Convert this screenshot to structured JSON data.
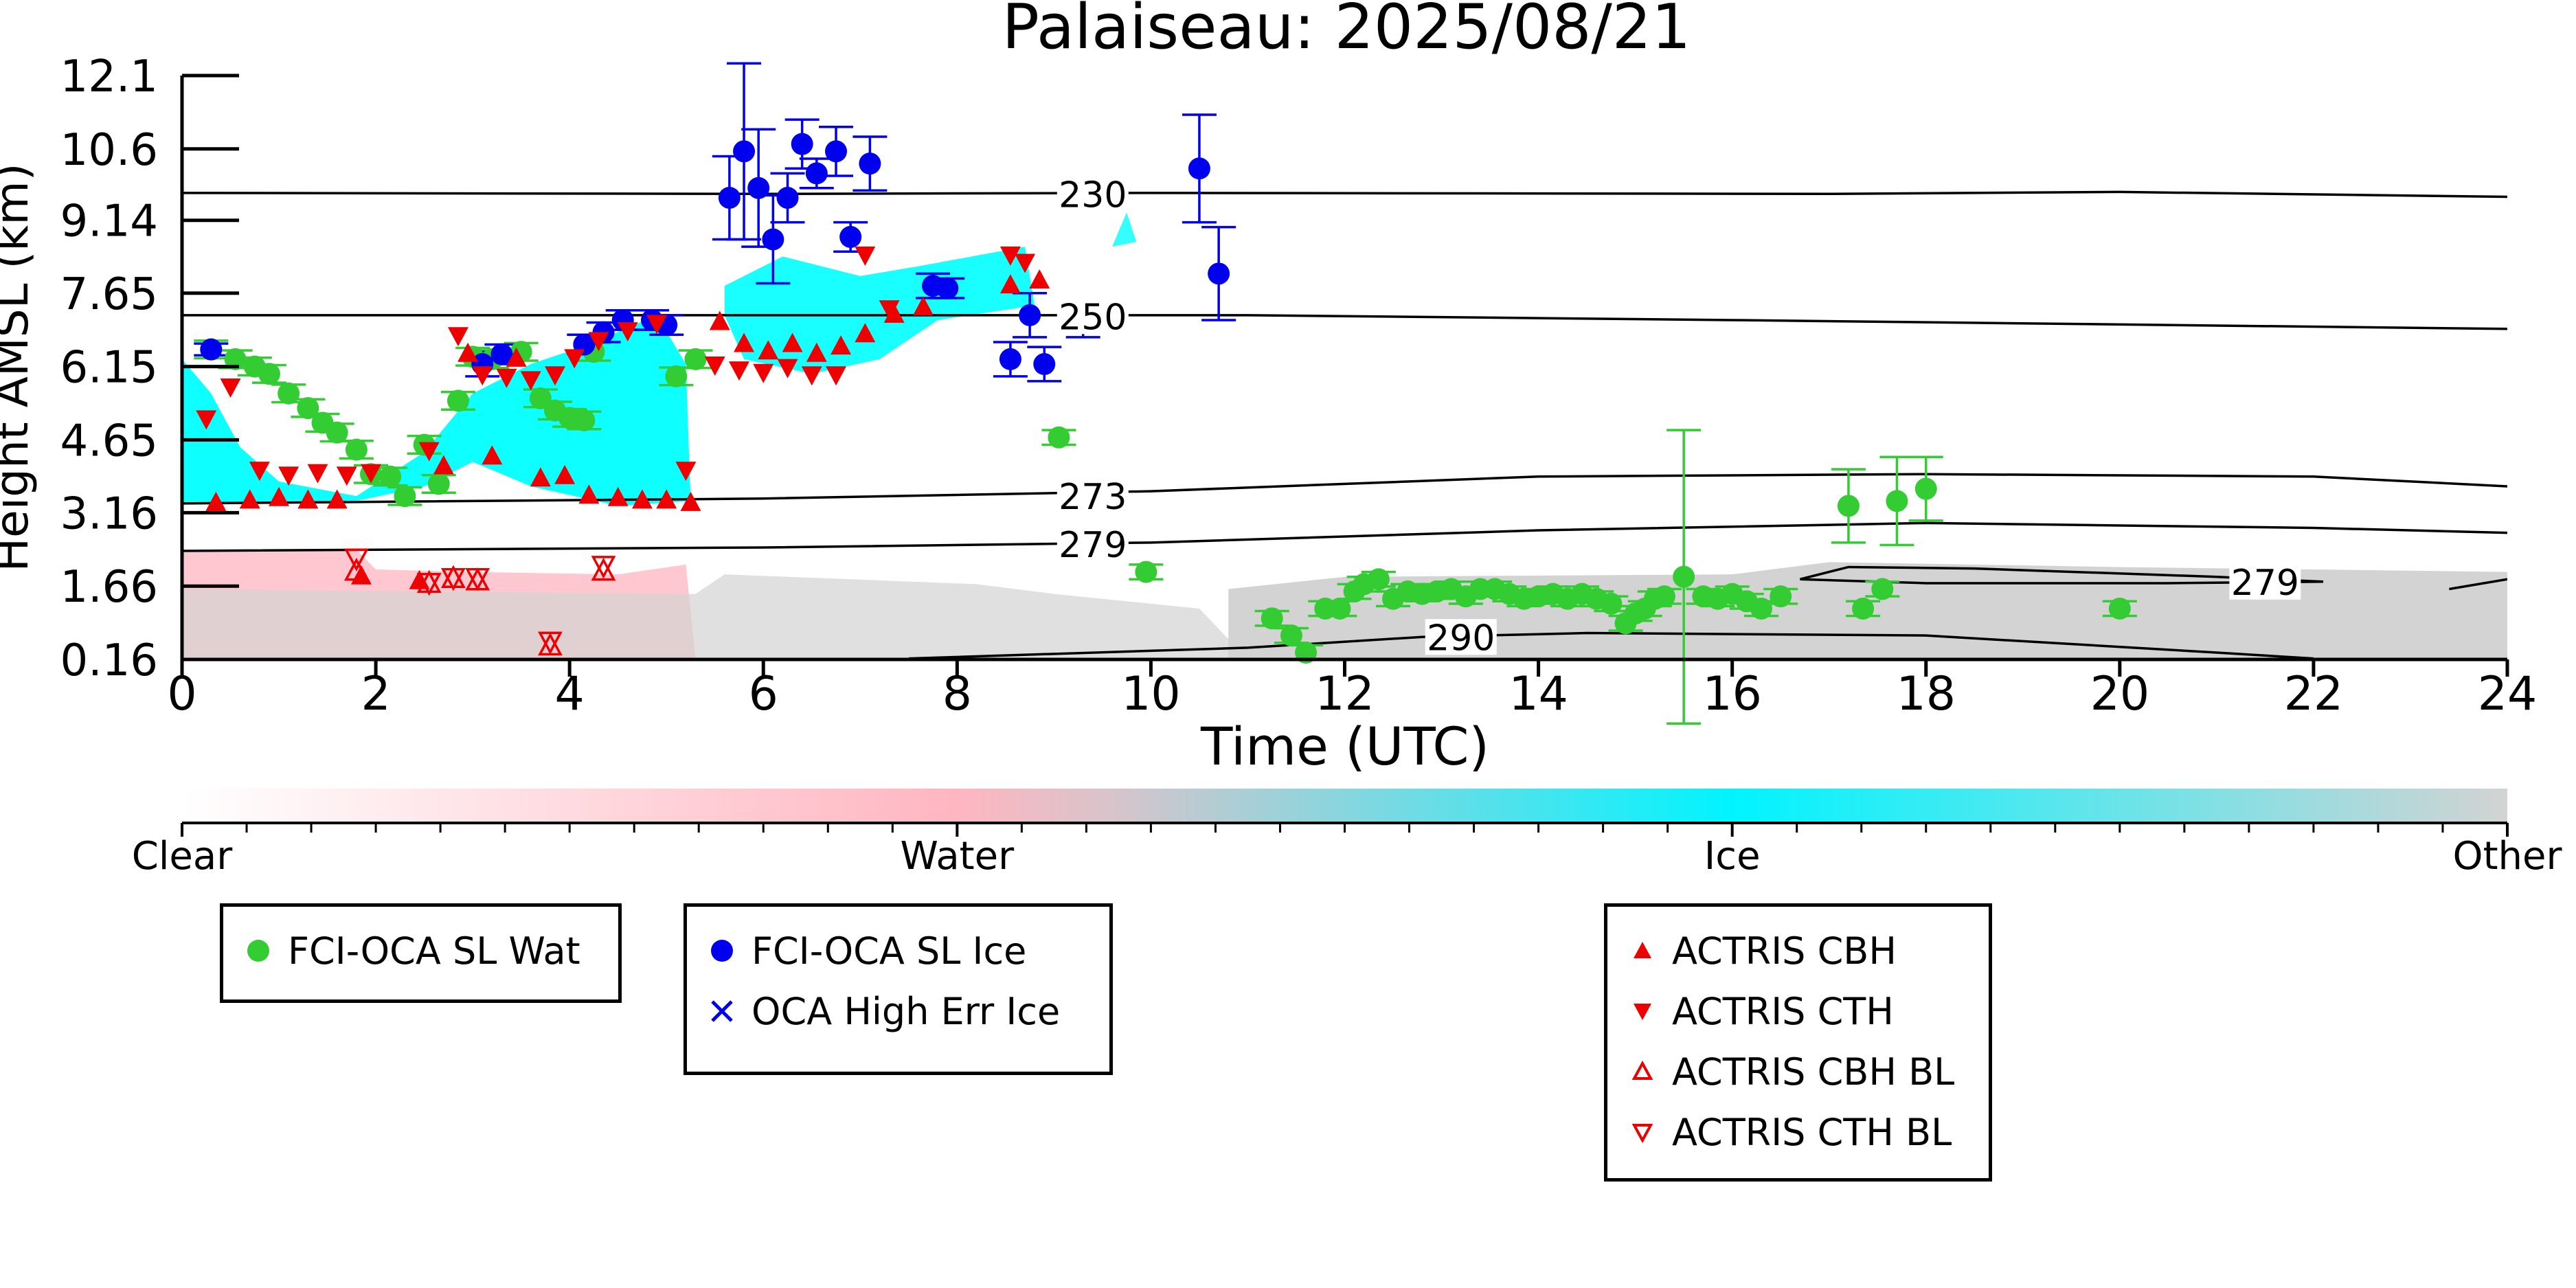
{
  "chart_data": {
    "type": "scatter",
    "title": "Palaiseau: 2025/08/21",
    "xlabel": "Time (UTC)",
    "ylabel": "Height AMSL (km)",
    "xlim": [
      0,
      24
    ],
    "ylim": [
      0.16,
      12.1
    ],
    "xticks": [
      "0",
      "2",
      "4",
      "6",
      "8",
      "10",
      "12",
      "14",
      "16",
      "18",
      "20",
      "22",
      "24"
    ],
    "yticks": [
      "0.16",
      "1.66",
      "3.16",
      "4.65",
      "6.15",
      "7.65",
      "9.14",
      "10.6",
      "12.1"
    ],
    "colorbar": {
      "labels": [
        "Clear",
        "Water",
        "Ice",
        "Other"
      ],
      "colors": [
        "#ffffff",
        "#ffb6c1",
        "#00ffff",
        "#d3d3d3"
      ]
    },
    "contours": [
      {
        "label": "230",
        "points": [
          [
            0,
            9.7
          ],
          [
            6,
            9.68
          ],
          [
            10,
            9.7
          ],
          [
            17,
            9.68
          ],
          [
            20,
            9.72
          ],
          [
            24,
            9.62
          ]
        ],
        "label_at": [
          9.4,
          9.68
        ]
      },
      {
        "label": "250",
        "points": [
          [
            0,
            7.2
          ],
          [
            6,
            7.2
          ],
          [
            11,
            7.2
          ],
          [
            16,
            7.1
          ],
          [
            24,
            6.92
          ]
        ],
        "label_at": [
          9.4,
          7.18
        ]
      },
      {
        "label": "273",
        "points": [
          [
            0,
            3.35
          ],
          [
            6,
            3.45
          ],
          [
            10,
            3.6
          ],
          [
            14,
            3.9
          ],
          [
            18,
            3.95
          ],
          [
            22,
            3.9
          ],
          [
            24,
            3.7
          ]
        ],
        "label_at": [
          9.4,
          3.5
        ]
      },
      {
        "label": "279",
        "points": [
          [
            0,
            2.38
          ],
          [
            6,
            2.45
          ],
          [
            10,
            2.55
          ],
          [
            14,
            2.8
          ],
          [
            18,
            2.95
          ],
          [
            22,
            2.85
          ],
          [
            24,
            2.75
          ]
        ],
        "label_at": [
          9.4,
          2.52
        ]
      },
      {
        "label": "279",
        "points": [
          [
            16.7,
            1.8
          ],
          [
            17.2,
            2.05
          ],
          [
            18.5,
            2.02
          ],
          [
            21.0,
            1.85
          ],
          [
            22.1,
            1.75
          ],
          [
            20.5,
            1.72
          ],
          [
            18.0,
            1.72
          ],
          [
            16.7,
            1.8
          ]
        ],
        "label_at": [
          21.5,
          1.75
        ]
      },
      {
        "label": "279",
        "points": [
          [
            23.4,
            1.6
          ],
          [
            24,
            1.8
          ]
        ],
        "label_at": null
      },
      {
        "label": "290",
        "points": [
          [
            7.5,
            0.18
          ],
          [
            11,
            0.4
          ],
          [
            12.8,
            0.62
          ],
          [
            14.5,
            0.7
          ],
          [
            18,
            0.65
          ],
          [
            21,
            0.3
          ],
          [
            22,
            0.18
          ]
        ],
        "label_at": [
          13.2,
          0.62
        ]
      }
    ],
    "series": [
      {
        "name": "FCI-OCA SL Wat",
        "color": "#33cc33",
        "marker": "circle",
        "x": [
          0.3,
          0.55,
          0.75,
          0.9,
          1.1,
          1.3,
          1.45,
          1.6,
          1.8,
          1.95,
          2.15,
          2.3,
          2.5,
          2.65,
          2.85,
          3.0,
          3.2,
          3.5,
          3.7,
          3.85,
          4.0,
          4.15,
          4.25,
          5.1,
          5.3,
          9.05,
          9.95,
          11.25,
          11.45,
          11.6,
          11.8,
          11.95,
          12.1,
          12.2,
          12.35,
          12.5,
          12.65,
          12.8,
          12.95,
          13.1,
          13.25,
          13.4,
          13.55,
          13.7,
          13.85,
          14.0,
          14.15,
          14.3,
          14.45,
          14.6,
          14.75,
          14.9,
          15.0,
          15.1,
          15.2,
          15.3,
          15.5,
          15.7,
          15.85,
          16.0,
          16.15,
          16.3,
          16.5,
          17.2,
          17.35,
          17.55,
          17.7,
          18.0,
          20.0
        ],
        "y": [
          6.5,
          6.3,
          6.15,
          6.0,
          5.6,
          5.3,
          5.0,
          4.8,
          4.45,
          3.95,
          3.9,
          3.5,
          4.55,
          3.75,
          5.45,
          6.35,
          6.3,
          6.45,
          5.5,
          5.25,
          5.1,
          5.05,
          6.45,
          5.95,
          6.3,
          4.7,
          1.95,
          1.0,
          0.65,
          0.3,
          1.2,
          1.2,
          1.55,
          1.7,
          1.8,
          1.4,
          1.55,
          1.5,
          1.55,
          1.6,
          1.45,
          1.6,
          1.6,
          1.5,
          1.4,
          1.45,
          1.5,
          1.4,
          1.5,
          1.4,
          1.3,
          0.9,
          1.1,
          1.2,
          1.4,
          1.45,
          1.85,
          1.45,
          1.4,
          1.5,
          1.35,
          1.2,
          1.45,
          3.3,
          1.2,
          1.6,
          3.4,
          3.65,
          1.2
        ],
        "yerr": [
          0.18,
          0.18,
          0.18,
          0.18,
          0.18,
          0.18,
          0.18,
          0.18,
          0.18,
          0.18,
          0.18,
          0.18,
          0.18,
          0.18,
          0.18,
          0.18,
          0.18,
          0.18,
          0.18,
          0.18,
          0.18,
          0.18,
          0.18,
          0.18,
          0.18,
          0.15,
          0.15,
          0.15,
          0.15,
          0.15,
          0.15,
          0.15,
          0.15,
          0.15,
          0.15,
          0.15,
          0.15,
          0.15,
          0.15,
          0.15,
          0.15,
          0.15,
          0.15,
          0.15,
          0.15,
          0.15,
          0.15,
          0.15,
          0.15,
          0.15,
          0.15,
          0.15,
          0.15,
          0.15,
          0.15,
          0.15,
          3.0,
          0.15,
          0.15,
          0.15,
          0.15,
          0.15,
          0.15,
          0.75,
          0.15,
          0.15,
          0.9,
          0.65,
          0.15
        ]
      },
      {
        "name": "FCI-OCA SL Ice",
        "color": "#0000ee",
        "marker": "circle",
        "x": [
          0.3,
          3.1,
          3.3,
          4.15,
          4.35,
          4.55,
          4.85,
          5.0,
          5.65,
          5.8,
          5.95,
          6.1,
          6.25,
          6.4,
          6.55,
          6.75,
          6.9,
          7.1,
          7.75,
          7.9,
          8.55,
          8.75,
          8.9,
          9.3,
          10.5,
          10.7
        ],
        "y": [
          6.5,
          6.2,
          6.4,
          6.6,
          6.85,
          7.1,
          7.1,
          7.0,
          9.6,
          10.55,
          9.8,
          8.75,
          9.6,
          10.7,
          10.1,
          10.55,
          8.8,
          10.3,
          7.8,
          7.75,
          6.3,
          7.2,
          6.2,
          7.05,
          10.2,
          8.05
        ]
      },
      {
        "name": "OCA High Err Ice",
        "color": "#0000ee",
        "marker": "x",
        "x": [],
        "y": []
      },
      {
        "name": "ACTRIS CBH",
        "color": "#ee0000",
        "marker": "triangle-up",
        "x": [
          0.35,
          0.7,
          1.0,
          1.3,
          1.6,
          1.85,
          2.45,
          2.7,
          2.95,
          3.2,
          3.45,
          3.7,
          3.95,
          4.2,
          4.5,
          4.75,
          5.0,
          5.25,
          5.55,
          5.8,
          6.05,
          6.3,
          6.55,
          6.8,
          7.05,
          7.35,
          7.65,
          8.55,
          8.85
        ],
        "y": [
          3.35,
          3.4,
          3.45,
          3.4,
          3.4,
          1.85,
          1.75,
          4.1,
          6.4,
          4.3,
          6.3,
          3.85,
          3.9,
          3.5,
          3.45,
          3.4,
          3.4,
          3.35,
          7.05,
          6.6,
          6.45,
          6.6,
          6.4,
          6.55,
          6.8,
          7.2,
          7.35,
          7.8,
          7.9
        ]
      },
      {
        "name": "ACTRIS CTH",
        "color": "#ee0000",
        "marker": "triangle-down",
        "x": [
          0.25,
          0.5,
          0.8,
          1.1,
          1.4,
          1.7,
          1.95,
          2.55,
          2.85,
          3.1,
          3.35,
          3.6,
          3.85,
          4.05,
          4.3,
          4.6,
          4.9,
          5.2,
          5.5,
          5.75,
          6.0,
          6.25,
          6.5,
          6.75,
          7.05,
          7.3,
          8.55,
          8.7
        ],
        "y": [
          5.1,
          5.75,
          4.05,
          3.95,
          4.0,
          3.95,
          4.0,
          4.45,
          6.8,
          6.0,
          5.95,
          5.9,
          6.0,
          6.35,
          6.7,
          6.9,
          7.05,
          4.05,
          6.2,
          6.1,
          6.05,
          6.15,
          6.0,
          6.0,
          8.45,
          7.35,
          8.45,
          8.3
        ]
      },
      {
        "name": "ACTRIS CBH BL",
        "color": "#ee0000",
        "marker": "triangle-up-open",
        "x": [
          1.8,
          2.55,
          2.8,
          3.05,
          3.8,
          4.35
        ],
        "y": [
          1.95,
          1.7,
          1.8,
          1.75,
          0.42,
          1.95
        ]
      },
      {
        "name": "ACTRIS CTH BL",
        "color": "#ee0000",
        "marker": "triangle-down-open",
        "x": [
          1.8,
          2.55,
          2.8,
          3.05,
          3.8,
          4.35
        ],
        "y": [
          2.25,
          1.75,
          1.85,
          1.85,
          0.55,
          2.1
        ]
      }
    ]
  }
}
